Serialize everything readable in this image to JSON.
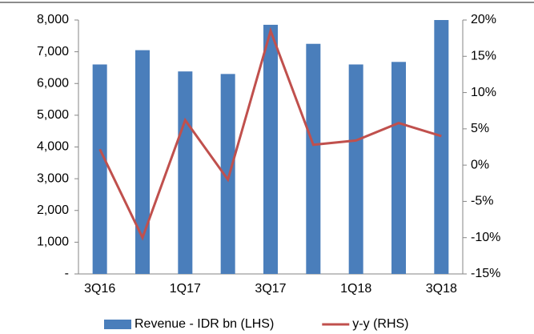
{
  "chart_data": {
    "type": "bar_line",
    "categories": [
      "3Q16",
      null,
      "1Q17",
      null,
      "3Q17",
      null,
      "1Q18",
      null,
      "3Q18"
    ],
    "series": [
      {
        "name": "Revenue - IDR bn (LHS)",
        "color": "#4a7ebb",
        "type": "bar",
        "axis": "y",
        "values": [
          6600,
          7050,
          6380,
          6300,
          7850,
          7250,
          6600,
          6680,
          8000
        ]
      },
      {
        "name": "y-y (RHS)",
        "color": "#c0504d",
        "type": "line",
        "axis": "y2",
        "values": [
          2.2,
          -10,
          6.2,
          -2,
          18.5,
          2.8,
          3.4,
          5.8,
          4.0
        ]
      }
    ],
    "ylim": [
      0,
      8000
    ],
    "yticks": [
      {
        "value": 0,
        "label": "-"
      },
      {
        "value": 1000,
        "label": "1,000"
      },
      {
        "value": 2000,
        "label": "2,000"
      },
      {
        "value": 3000,
        "label": "3,000"
      },
      {
        "value": 4000,
        "label": "4,000"
      },
      {
        "value": 5000,
        "label": "5,000"
      },
      {
        "value": 6000,
        "label": "6,000"
      },
      {
        "value": 7000,
        "label": "7,000"
      },
      {
        "value": 8000,
        "label": "8,000"
      }
    ],
    "y2lim": [
      -15,
      20
    ],
    "y2ticks": [
      {
        "value": -15,
        "label": "-15%"
      },
      {
        "value": -10,
        "label": "-10%"
      },
      {
        "value": -5,
        "label": "-5%"
      },
      {
        "value": 0,
        "label": "0%"
      },
      {
        "value": 5,
        "label": "5%"
      },
      {
        "value": 10,
        "label": "10%"
      },
      {
        "value": 15,
        "label": "15%"
      },
      {
        "value": 20,
        "label": "20%"
      }
    ],
    "legend": "bottom"
  }
}
